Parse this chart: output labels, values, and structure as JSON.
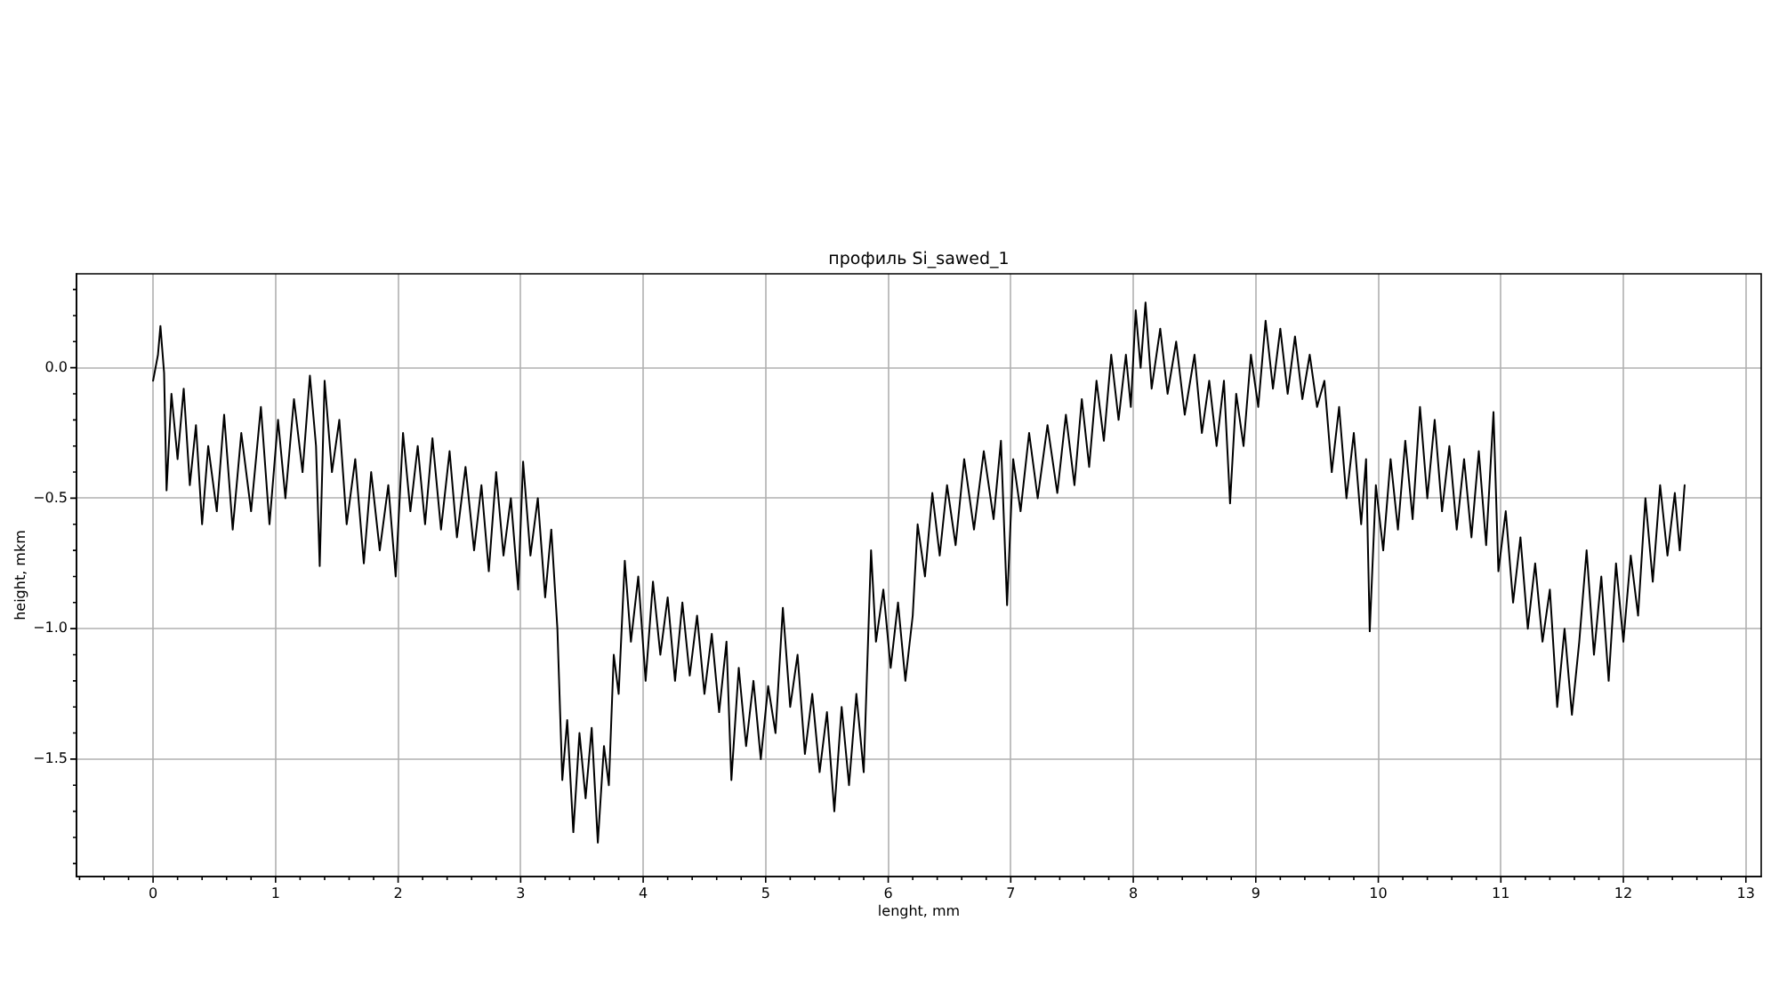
{
  "chart_data": {
    "type": "line",
    "title": "профиль Si_sawed_1",
    "xlabel": "lenght, mm",
    "ylabel": "height, mkm",
    "color": "#000000",
    "grid": true,
    "xlim": [
      -0.625,
      13.125
    ],
    "ylim": [
      -1.95,
      0.36
    ],
    "xticks": [
      {
        "value": -0.6,
        "label": null
      },
      {
        "value": -0.4,
        "label": null
      },
      {
        "value": -0.2,
        "label": null
      },
      0,
      {
        "value": 0.2,
        "label": null
      },
      {
        "value": 0.4,
        "label": null
      },
      {
        "value": 0.6,
        "label": null
      },
      {
        "value": 0.8,
        "label": null
      },
      1,
      {
        "value": 1.2,
        "label": null
      },
      {
        "value": 1.4,
        "label": null
      },
      {
        "value": 1.6,
        "label": null
      },
      {
        "value": 1.8,
        "label": null
      },
      2,
      {
        "value": 2.2,
        "label": null
      },
      {
        "value": 2.4,
        "label": null
      },
      {
        "value": 2.6,
        "label": null
      },
      {
        "value": 2.8,
        "label": null
      },
      3,
      {
        "value": 3.2,
        "label": null
      },
      {
        "value": 3.4,
        "label": null
      },
      {
        "value": 3.6,
        "label": null
      },
      {
        "value": 3.8,
        "label": null
      },
      4,
      {
        "value": 4.2,
        "label": null
      },
      {
        "value": 4.4,
        "label": null
      },
      {
        "value": 4.6,
        "label": null
      },
      {
        "value": 4.8,
        "label": null
      },
      5,
      {
        "value": 5.2,
        "label": null
      },
      {
        "value": 5.4,
        "label": null
      },
      {
        "value": 5.6,
        "label": null
      },
      {
        "value": 5.8,
        "label": null
      },
      6,
      {
        "value": 6.2,
        "label": null
      },
      {
        "value": 6.4,
        "label": null
      },
      {
        "value": 6.6,
        "label": null
      },
      {
        "value": 6.8,
        "label": null
      },
      7,
      {
        "value": 7.2,
        "label": null
      },
      {
        "value": 7.4,
        "label": null
      },
      {
        "value": 7.6,
        "label": null
      },
      {
        "value": 7.8,
        "label": null
      },
      8,
      {
        "value": 8.2,
        "label": null
      },
      {
        "value": 8.4,
        "label": null
      },
      {
        "value": 8.6,
        "label": null
      },
      {
        "value": 8.8,
        "label": null
      },
      9,
      {
        "value": 9.2,
        "label": null
      },
      {
        "value": 9.4,
        "label": null
      },
      {
        "value": 9.6,
        "label": null
      },
      {
        "value": 9.8,
        "label": null
      },
      10,
      {
        "value": 10.2,
        "label": null
      },
      {
        "value": 10.4,
        "label": null
      },
      {
        "value": 10.6,
        "label": null
      },
      {
        "value": 10.8,
        "label": null
      },
      11,
      {
        "value": 11.2,
        "label": null
      },
      {
        "value": 11.4,
        "label": null
      },
      {
        "value": 11.6,
        "label": null
      },
      {
        "value": 11.8,
        "label": null
      },
      12,
      {
        "value": 12.2,
        "label": null
      },
      {
        "value": 12.4,
        "label": null
      },
      {
        "value": 12.6,
        "label": null
      },
      {
        "value": 12.8,
        "label": null
      },
      13
    ],
    "yticks": [
      {
        "value": -1.9,
        "label": null
      },
      {
        "value": -1.8,
        "label": null
      },
      {
        "value": -1.7,
        "label": null
      },
      {
        "value": -1.6,
        "label": null
      },
      {
        "value": -1.5,
        "label": "−1.5"
      },
      {
        "value": -1.4,
        "label": null
      },
      {
        "value": -1.3,
        "label": null
      },
      {
        "value": -1.2,
        "label": null
      },
      {
        "value": -1.1,
        "label": null
      },
      {
        "value": -1.0,
        "label": "−1.0"
      },
      {
        "value": -0.9,
        "label": null
      },
      {
        "value": -0.8,
        "label": null
      },
      {
        "value": -0.7,
        "label": null
      },
      {
        "value": -0.6,
        "label": null
      },
      {
        "value": -0.5,
        "label": "−0.5"
      },
      {
        "value": -0.4,
        "label": null
      },
      {
        "value": -0.3,
        "label": null
      },
      {
        "value": -0.2,
        "label": null
      },
      {
        "value": -0.1,
        "label": null
      },
      {
        "value": 0,
        "label": "0.0"
      },
      {
        "value": 0.1,
        "label": null
      },
      {
        "value": 0.2,
        "label": null
      },
      {
        "value": 0.3,
        "label": null
      }
    ],
    "x": [
      0.0,
      0.04,
      0.06,
      0.09,
      0.11,
      0.15,
      0.2,
      0.25,
      0.3,
      0.35,
      0.4,
      0.45,
      0.52,
      0.58,
      0.65,
      0.72,
      0.8,
      0.88,
      0.95,
      1.02,
      1.08,
      1.15,
      1.22,
      1.28,
      1.33,
      1.36,
      1.4,
      1.46,
      1.52,
      1.58,
      1.65,
      1.72,
      1.78,
      1.85,
      1.92,
      1.98,
      2.04,
      2.1,
      2.16,
      2.22,
      2.28,
      2.35,
      2.42,
      2.48,
      2.55,
      2.62,
      2.68,
      2.74,
      2.8,
      2.86,
      2.92,
      2.98,
      3.02,
      3.08,
      3.14,
      3.2,
      3.25,
      3.3,
      3.34,
      3.38,
      3.43,
      3.48,
      3.53,
      3.58,
      3.63,
      3.68,
      3.72,
      3.76,
      3.8,
      3.85,
      3.9,
      3.96,
      4.02,
      4.08,
      4.14,
      4.2,
      4.26,
      4.32,
      4.38,
      4.44,
      4.5,
      4.56,
      4.62,
      4.68,
      4.72,
      4.78,
      4.84,
      4.9,
      4.96,
      5.02,
      5.08,
      5.14,
      5.2,
      5.26,
      5.32,
      5.38,
      5.44,
      5.5,
      5.56,
      5.62,
      5.68,
      5.74,
      5.8,
      5.86,
      5.9,
      5.96,
      6.02,
      6.08,
      6.14,
      6.2,
      6.24,
      6.3,
      6.36,
      6.42,
      6.48,
      6.55,
      6.62,
      6.7,
      6.78,
      6.86,
      6.92,
      6.97,
      7.02,
      7.08,
      7.15,
      7.22,
      7.3,
      7.38,
      7.45,
      7.52,
      7.58,
      7.64,
      7.7,
      7.76,
      7.82,
      7.88,
      7.94,
      7.98,
      8.02,
      8.06,
      8.1,
      8.15,
      8.22,
      8.28,
      8.35,
      8.42,
      8.5,
      8.56,
      8.62,
      8.68,
      8.74,
      8.79,
      8.84,
      8.9,
      8.96,
      9.02,
      9.08,
      9.14,
      9.2,
      9.26,
      9.32,
      9.38,
      9.44,
      9.5,
      9.56,
      9.62,
      9.68,
      9.74,
      9.8,
      9.86,
      9.9,
      9.93,
      9.98,
      10.04,
      10.1,
      10.16,
      10.22,
      10.28,
      10.34,
      10.4,
      10.46,
      10.52,
      10.58,
      10.64,
      10.7,
      10.76,
      10.82,
      10.88,
      10.94,
      10.98,
      11.04,
      11.1,
      11.16,
      11.22,
      11.28,
      11.34,
      11.4,
      11.46,
      11.52,
      11.58,
      11.64,
      11.7,
      11.76,
      11.82,
      11.88,
      11.94,
      12.0,
      12.06,
      12.12,
      12.18,
      12.24,
      12.3,
      12.36,
      12.42,
      12.46,
      12.5
    ],
    "values": [
      -0.05,
      0.05,
      0.16,
      -0.02,
      -0.47,
      -0.1,
      -0.35,
      -0.08,
      -0.45,
      -0.22,
      -0.6,
      -0.3,
      -0.55,
      -0.18,
      -0.62,
      -0.25,
      -0.55,
      -0.15,
      -0.6,
      -0.2,
      -0.5,
      -0.12,
      -0.4,
      -0.03,
      -0.3,
      -0.76,
      -0.05,
      -0.4,
      -0.2,
      -0.6,
      -0.35,
      -0.75,
      -0.4,
      -0.7,
      -0.45,
      -0.8,
      -0.25,
      -0.55,
      -0.3,
      -0.6,
      -0.27,
      -0.62,
      -0.32,
      -0.65,
      -0.38,
      -0.7,
      -0.45,
      -0.78,
      -0.4,
      -0.72,
      -0.5,
      -0.85,
      -0.36,
      -0.72,
      -0.5,
      -0.88,
      -0.62,
      -1.0,
      -1.58,
      -1.35,
      -1.78,
      -1.4,
      -1.65,
      -1.38,
      -1.82,
      -1.45,
      -1.6,
      -1.1,
      -1.25,
      -0.74,
      -1.05,
      -0.8,
      -1.2,
      -0.82,
      -1.1,
      -0.88,
      -1.2,
      -0.9,
      -1.18,
      -0.95,
      -1.25,
      -1.02,
      -1.32,
      -1.05,
      -1.58,
      -1.15,
      -1.45,
      -1.2,
      -1.5,
      -1.22,
      -1.4,
      -0.92,
      -1.3,
      -1.1,
      -1.48,
      -1.25,
      -1.55,
      -1.32,
      -1.7,
      -1.3,
      -1.6,
      -1.25,
      -1.55,
      -0.7,
      -1.05,
      -0.85,
      -1.15,
      -0.9,
      -1.2,
      -0.95,
      -0.6,
      -0.8,
      -0.48,
      -0.72,
      -0.45,
      -0.68,
      -0.35,
      -0.62,
      -0.32,
      -0.58,
      -0.28,
      -0.91,
      -0.35,
      -0.55,
      -0.25,
      -0.5,
      -0.22,
      -0.48,
      -0.18,
      -0.45,
      -0.12,
      -0.38,
      -0.05,
      -0.28,
      0.05,
      -0.2,
      0.05,
      -0.15,
      0.22,
      0.0,
      0.25,
      -0.08,
      0.15,
      -0.1,
      0.1,
      -0.18,
      0.05,
      -0.25,
      -0.05,
      -0.3,
      -0.05,
      -0.52,
      -0.1,
      -0.3,
      0.05,
      -0.15,
      0.18,
      -0.08,
      0.15,
      -0.1,
      0.12,
      -0.12,
      0.05,
      -0.15,
      -0.05,
      -0.4,
      -0.15,
      -0.5,
      -0.25,
      -0.6,
      -0.35,
      -1.01,
      -0.45,
      -0.7,
      -0.35,
      -0.62,
      -0.28,
      -0.58,
      -0.15,
      -0.5,
      -0.2,
      -0.55,
      -0.3,
      -0.62,
      -0.35,
      -0.65,
      -0.32,
      -0.68,
      -0.17,
      -0.78,
      -0.55,
      -0.9,
      -0.65,
      -1.0,
      -0.75,
      -1.05,
      -0.85,
      -1.3,
      -1.0,
      -1.33,
      -1.05,
      -0.7,
      -1.1,
      -0.8,
      -1.2,
      -0.75,
      -1.05,
      -0.72,
      -0.95,
      -0.5,
      -0.82,
      -0.45,
      -0.72,
      -0.48,
      -0.7,
      -0.45
    ]
  }
}
